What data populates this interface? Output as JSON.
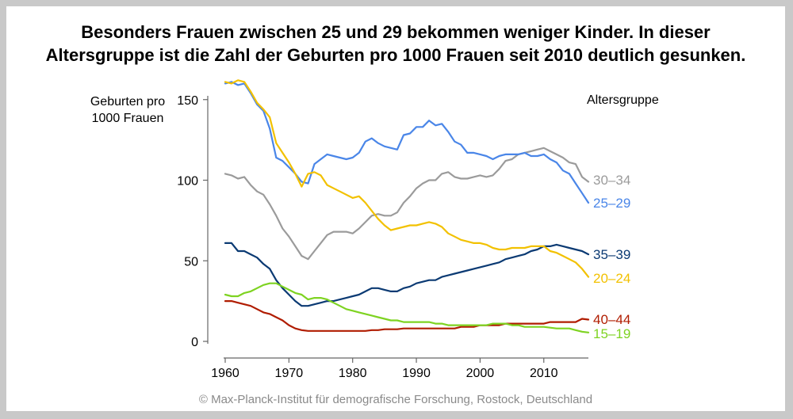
{
  "title_line1": "Besonders Frauen zwischen 25 und 29 bekommen weniger Kinder. In dieser",
  "title_line2": "Altersgruppe ist die Zahl der Geburten pro 1000 Frauen seit 2010 deutlich gesunken.",
  "ylabel_line1": "Geburten pro",
  "ylabel_line2": "1000 Frauen",
  "legend_title": "Altersgruppe",
  "credit": "© Max-Planck-Institut für demografische Forschung, Rostock, Deutschland",
  "chart_data": {
    "type": "line",
    "ylim": [
      0,
      155
    ],
    "xlim": [
      1960,
      2017
    ],
    "yticks": [
      0,
      50,
      100,
      150
    ],
    "xticks": [
      1960,
      1970,
      1980,
      1990,
      2000,
      2010
    ],
    "grid": false,
    "legend_placement": "right, labels at line ends",
    "series": [
      {
        "name": "30–34",
        "color": "#9b9b9b",
        "x": [
          1960,
          1961,
          1962,
          1963,
          1964,
          1965,
          1966,
          1967,
          1968,
          1969,
          1970,
          1971,
          1972,
          1973,
          1974,
          1975,
          1976,
          1977,
          1978,
          1979,
          1980,
          1981,
          1982,
          1983,
          1984,
          1985,
          1986,
          1987,
          1988,
          1989,
          1990,
          1991,
          1992,
          1993,
          1994,
          1995,
          1996,
          1997,
          1998,
          1999,
          2000,
          2001,
          2002,
          2003,
          2004,
          2005,
          2006,
          2007,
          2008,
          2009,
          2010,
          2011,
          2012,
          2013,
          2014,
          2015,
          2016,
          2017
        ],
        "y": [
          104,
          103,
          101,
          102,
          97,
          93,
          91,
          85,
          78,
          70,
          65,
          59,
          53,
          51,
          56,
          61,
          66,
          68,
          68,
          68,
          67,
          70,
          74,
          78,
          79,
          78,
          78,
          80,
          86,
          90,
          95,
          98,
          100,
          100,
          104,
          105,
          102,
          101,
          101,
          102,
          103,
          102,
          103,
          107,
          112,
          113,
          116,
          117,
          118,
          119,
          120,
          118,
          116,
          114,
          111,
          110,
          102,
          99
        ]
      },
      {
        "name": "25–29",
        "color": "#4a86e8",
        "x": [
          1960,
          1961,
          1962,
          1963,
          1964,
          1965,
          1966,
          1967,
          1968,
          1969,
          1970,
          1971,
          1972,
          1973,
          1974,
          1975,
          1976,
          1977,
          1978,
          1979,
          1980,
          1981,
          1982,
          1983,
          1984,
          1985,
          1986,
          1987,
          1988,
          1989,
          1990,
          1991,
          1992,
          1993,
          1994,
          1995,
          1996,
          1997,
          1998,
          1999,
          2000,
          2001,
          2002,
          2003,
          2004,
          2005,
          2006,
          2007,
          2008,
          2009,
          2010,
          2011,
          2012,
          2013,
          2014,
          2015,
          2016,
          2017
        ],
        "y": [
          160,
          161,
          159,
          160,
          154,
          147,
          143,
          132,
          114,
          112,
          108,
          104,
          99,
          98,
          110,
          113,
          116,
          115,
          114,
          113,
          114,
          117,
          124,
          126,
          123,
          121,
          120,
          119,
          128,
          129,
          133,
          133,
          137,
          134,
          135,
          130,
          124,
          122,
          117,
          117,
          116,
          115,
          113,
          115,
          116,
          116,
          116,
          117,
          115,
          115,
          116,
          113,
          111,
          106,
          104,
          98,
          92,
          86
        ]
      },
      {
        "name": "35–39",
        "color": "#0b3a73",
        "x": [
          1960,
          1961,
          1962,
          1963,
          1964,
          1965,
          1966,
          1967,
          1968,
          1969,
          1970,
          1971,
          1972,
          1973,
          1974,
          1975,
          1976,
          1977,
          1978,
          1979,
          1980,
          1981,
          1982,
          1983,
          1984,
          1985,
          1986,
          1987,
          1988,
          1989,
          1990,
          1991,
          1992,
          1993,
          1994,
          1995,
          1996,
          1997,
          1998,
          1999,
          2000,
          2001,
          2002,
          2003,
          2004,
          2005,
          2006,
          2007,
          2008,
          2009,
          2010,
          2011,
          2012,
          2013,
          2014,
          2015,
          2016,
          2017
        ],
        "y": [
          61,
          61,
          56,
          56,
          54,
          52,
          48,
          45,
          38,
          33,
          29,
          25,
          22,
          22,
          23,
          24,
          25,
          25,
          26,
          27,
          28,
          29,
          31,
          33,
          33,
          32,
          31,
          31,
          33,
          34,
          36,
          37,
          38,
          38,
          40,
          41,
          42,
          43,
          44,
          45,
          46,
          47,
          48,
          49,
          51,
          52,
          53,
          54,
          56,
          57,
          59,
          59,
          60,
          59,
          58,
          57,
          56,
          54
        ]
      },
      {
        "name": "20–24",
        "color": "#f2c100",
        "x": [
          1960,
          1961,
          1962,
          1963,
          1964,
          1965,
          1966,
          1967,
          1968,
          1969,
          1970,
          1971,
          1972,
          1973,
          1974,
          1975,
          1976,
          1977,
          1978,
          1979,
          1980,
          1981,
          1982,
          1983,
          1984,
          1985,
          1986,
          1987,
          1988,
          1989,
          1990,
          1991,
          1992,
          1993,
          1994,
          1995,
          1996,
          1997,
          1998,
          1999,
          2000,
          2001,
          2002,
          2003,
          2004,
          2005,
          2006,
          2007,
          2008,
          2009,
          2010,
          2011,
          2012,
          2013,
          2014,
          2015,
          2016,
          2017
        ],
        "y": [
          161,
          160,
          162,
          161,
          155,
          148,
          144,
          139,
          123,
          117,
          111,
          104,
          96,
          104,
          105,
          103,
          97,
          95,
          93,
          91,
          89,
          90,
          86,
          81,
          76,
          72,
          69,
          70,
          71,
          72,
          72,
          73,
          74,
          73,
          71,
          67,
          65,
          63,
          62,
          61,
          61,
          60,
          58,
          57,
          57,
          58,
          58,
          58,
          59,
          59,
          59,
          56,
          55,
          53,
          51,
          49,
          45,
          40
        ]
      },
      {
        "name": "40–44",
        "color": "#b01c00",
        "x": [
          1960,
          1961,
          1962,
          1963,
          1964,
          1965,
          1966,
          1967,
          1968,
          1969,
          1970,
          1971,
          1972,
          1973,
          1974,
          1975,
          1976,
          1977,
          1978,
          1979,
          1980,
          1981,
          1982,
          1983,
          1984,
          1985,
          1986,
          1987,
          1988,
          1989,
          1990,
          1991,
          1992,
          1993,
          1994,
          1995,
          1996,
          1997,
          1998,
          1999,
          2000,
          2001,
          2002,
          2003,
          2004,
          2005,
          2006,
          2007,
          2008,
          2009,
          2010,
          2011,
          2012,
          2013,
          2014,
          2015,
          2016,
          2017
        ],
        "y": [
          25,
          25,
          24,
          23,
          22,
          20,
          18,
          17,
          15,
          13,
          10,
          8,
          7,
          6.5,
          6.5,
          6.5,
          6.5,
          6.5,
          6.5,
          6.5,
          6.5,
          6.5,
          6.5,
          7,
          7,
          7.5,
          7.5,
          7.5,
          8,
          8,
          8,
          8,
          8,
          8,
          8,
          8,
          8,
          9,
          9,
          9,
          10,
          10,
          10,
          10,
          11,
          11,
          11,
          11,
          11,
          11,
          11,
          12,
          12,
          12,
          12,
          12,
          14,
          13.5
        ]
      },
      {
        "name": "15–19",
        "color": "#7ed321",
        "x": [
          1960,
          1961,
          1962,
          1963,
          1964,
          1965,
          1966,
          1967,
          1968,
          1969,
          1970,
          1971,
          1972,
          1973,
          1974,
          1975,
          1976,
          1977,
          1978,
          1979,
          1980,
          1981,
          1982,
          1983,
          1984,
          1985,
          1986,
          1987,
          1988,
          1989,
          1990,
          1991,
          1992,
          1993,
          1994,
          1995,
          1996,
          1997,
          1998,
          1999,
          2000,
          2001,
          2002,
          2003,
          2004,
          2005,
          2006,
          2007,
          2008,
          2009,
          2010,
          2011,
          2012,
          2013,
          2014,
          2015,
          2016,
          2017
        ],
        "y": [
          29,
          28,
          28,
          30,
          31,
          33,
          35,
          36,
          36,
          34,
          32,
          30,
          29,
          26,
          27,
          27,
          26,
          24,
          22,
          20,
          19,
          18,
          17,
          16,
          15,
          14,
          13,
          13,
          12,
          12,
          12,
          12,
          12,
          11,
          11,
          10,
          10,
          10,
          10,
          10,
          10,
          10,
          11,
          11,
          11,
          10,
          10,
          9,
          9,
          9,
          9,
          8.5,
          8,
          8,
          8,
          7,
          6,
          5.5
        ]
      }
    ]
  }
}
